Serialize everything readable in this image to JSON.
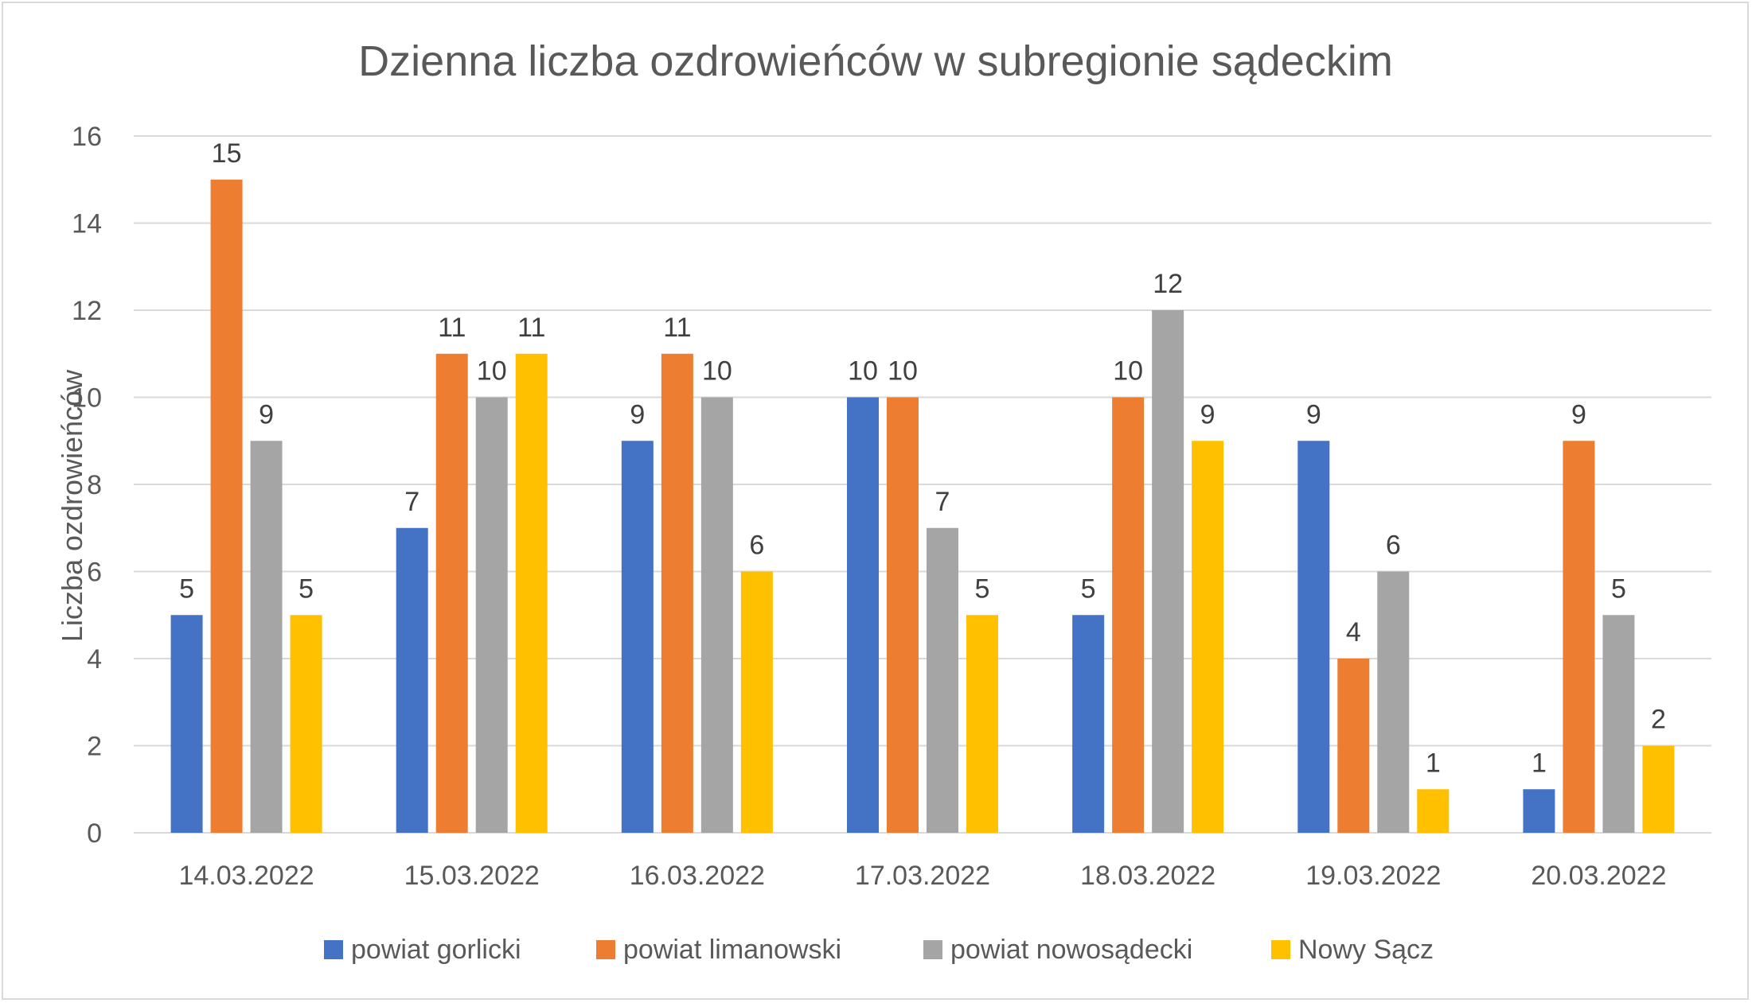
{
  "chart_data": {
    "type": "bar",
    "title": "Dzienna liczba ozdrowieńców w subregionie sądeckim",
    "xlabel": "",
    "ylabel": "Liczba ozdrowieńców",
    "ylim": [
      0,
      16
    ],
    "yticks": [
      0,
      2,
      4,
      6,
      8,
      10,
      12,
      14,
      16
    ],
    "grid": true,
    "legend_position": "bottom",
    "categories": [
      "14.03.2022",
      "15.03.2022",
      "16.03.2022",
      "17.03.2022",
      "18.03.2022",
      "19.03.2022",
      "20.03.2022"
    ],
    "series": [
      {
        "name": "powiat gorlicki",
        "color": "#4472C4",
        "values": [
          5,
          7,
          9,
          10,
          5,
          9,
          1
        ]
      },
      {
        "name": "powiat limanowski",
        "color": "#ED7D31",
        "values": [
          15,
          11,
          11,
          10,
          10,
          4,
          9
        ]
      },
      {
        "name": "powiat nowosądecki",
        "color": "#A5A5A5",
        "values": [
          9,
          10,
          10,
          7,
          12,
          6,
          5
        ]
      },
      {
        "name": "Nowy Sącz",
        "color": "#FFC000",
        "values": [
          5,
          11,
          6,
          5,
          9,
          1,
          2
        ]
      }
    ]
  }
}
